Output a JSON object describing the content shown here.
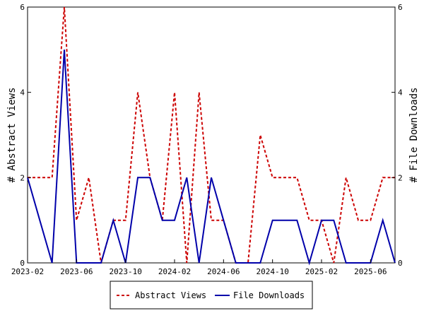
{
  "chart_data": {
    "type": "line",
    "x": [
      "2023-02",
      "2023-03",
      "2023-04",
      "2023-05",
      "2023-06",
      "2023-07",
      "2023-08",
      "2023-09",
      "2023-10",
      "2023-11",
      "2023-12",
      "2024-01",
      "2024-02",
      "2024-03",
      "2024-04",
      "2024-05",
      "2024-06",
      "2024-07",
      "2024-08",
      "2024-09",
      "2024-10",
      "2024-11",
      "2024-12",
      "2025-01",
      "2025-02",
      "2025-03",
      "2025-04",
      "2025-05",
      "2025-06",
      "2025-07",
      "2025-08"
    ],
    "x_tick_labels": [
      "2023-02",
      "2023-06",
      "2023-10",
      "2024-02",
      "2024-06",
      "2024-10",
      "2025-02",
      "2025-06"
    ],
    "ylabel_left": "# Abstract Views",
    "ylabel_right": "# File Downloads",
    "ylim_left": [
      0,
      6
    ],
    "ylim_right": [
      0,
      6
    ],
    "y_ticks": [
      "0",
      "2",
      "4",
      "6"
    ],
    "grid": false,
    "legend_position": "bottom-center",
    "series": [
      {
        "name": "Abstract Views",
        "axis": "left",
        "color": "#cc0000",
        "style": "dashed",
        "values": [
          2,
          2,
          2,
          6,
          1,
          2,
          0,
          1,
          1,
          4,
          2,
          1,
          4,
          0,
          4,
          1,
          1,
          0,
          0,
          3,
          2,
          2,
          2,
          1,
          1,
          0,
          2,
          1,
          1,
          2,
          2
        ]
      },
      {
        "name": "File Downloads",
        "axis": "right",
        "color": "#0000aa",
        "style": "solid",
        "values": [
          2,
          1,
          0,
          5,
          0,
          0,
          0,
          1,
          0,
          2,
          2,
          1,
          1,
          2,
          0,
          2,
          1,
          0,
          0,
          0,
          1,
          1,
          1,
          0,
          1,
          1,
          0,
          0,
          0,
          1,
          0
        ]
      }
    ]
  }
}
